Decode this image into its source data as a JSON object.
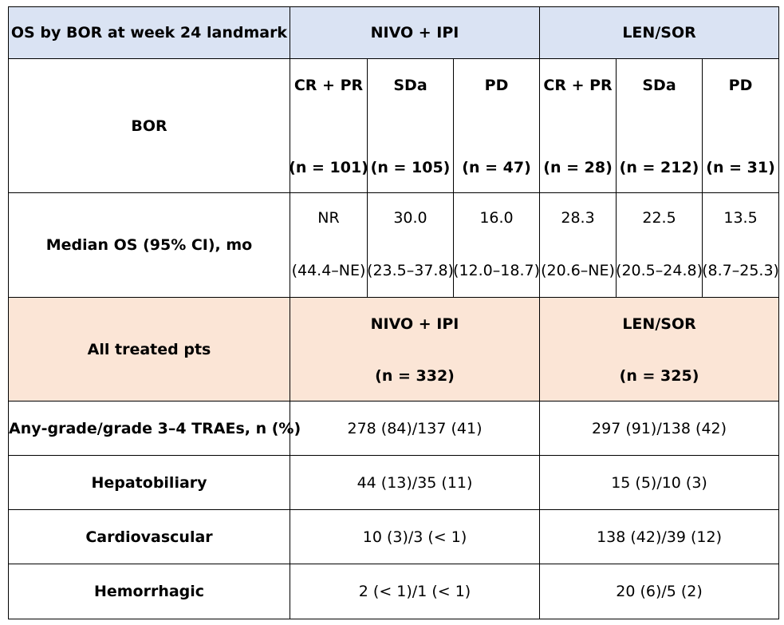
{
  "header": {
    "title": "OS by BOR at week 24 landmark",
    "arm1": "NIVO + IPI",
    "arm2": "LEN/SOR"
  },
  "bor_row": {
    "label": "BOR",
    "groups": [
      {
        "name": "CR + PR",
        "n": "(n = 101)"
      },
      {
        "name": "SDa",
        "n": "(n = 105)"
      },
      {
        "name": "PD",
        "n": "(n = 47)"
      },
      {
        "name": "CR + PR",
        "n": "(n = 28)"
      },
      {
        "name": "SDa",
        "n": "(n = 212)"
      },
      {
        "name": "PD",
        "n": "(n = 31)"
      }
    ]
  },
  "os_row": {
    "label": "Median OS (95% CI), mo",
    "values": [
      {
        "median": "NR",
        "ci": "(44.4–NE)"
      },
      {
        "median": "30.0",
        "ci": "(23.5–37.8)"
      },
      {
        "median": "16.0",
        "ci": "(12.0–18.7)"
      },
      {
        "median": "28.3",
        "ci": "(20.6–NE)"
      },
      {
        "median": "22.5",
        "ci": "(20.5–24.8)"
      },
      {
        "median": "13.5",
        "ci": "(8.7–25.3)"
      }
    ]
  },
  "treated_header": {
    "label": "All treated pts",
    "arm1": "NIVO + IPI",
    "arm1_n": "(n = 332)",
    "arm2": "LEN/SOR",
    "arm2_n": "(n = 325)"
  },
  "trae_rows": [
    {
      "label": "Any-grade/grade 3–4 TRAEs, n (%)",
      "arm1": "278 (84)/137 (41)",
      "arm2": "297 (91)/138 (42)"
    },
    {
      "label": "Hepatobiliary",
      "arm1": "44 (13)/35 (11)",
      "arm2": "15 (5)/10 (3)"
    },
    {
      "label": "Cardiovascular",
      "arm1": "10 (3)/3 (< 1)",
      "arm2": "138 (42)/39 (12)"
    },
    {
      "label": "Hemorrhagic",
      "arm1": "2 (< 1)/1 (< 1)",
      "arm2": "20 (6)/5 (2)"
    }
  ]
}
